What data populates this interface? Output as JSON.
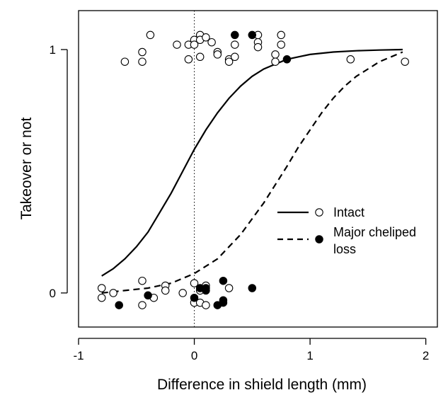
{
  "chart_data": {
    "type": "scatter",
    "title": "",
    "xlabel": "Difference in shield length (mm)",
    "ylabel": "Takeover or not",
    "xlim": [
      -1.0,
      2.1
    ],
    "ylim": [
      -0.14,
      1.16
    ],
    "x_ticks": [
      -1,
      0,
      1,
      2
    ],
    "x_tick_labels": [
      "-1",
      "0",
      "1",
      "2"
    ],
    "y_ticks": [
      0,
      1
    ],
    "y_tick_labels": [
      "0",
      "1"
    ],
    "reference_line_x": 0,
    "legend_position": "right-center",
    "series": [
      {
        "name": "Intact",
        "marker": "open-circle",
        "line_style": "solid",
        "curve": {
          "x": [
            -0.8,
            -0.7,
            -0.6,
            -0.5,
            -0.4,
            -0.3,
            -0.2,
            -0.1,
            0.0,
            0.1,
            0.2,
            0.3,
            0.4,
            0.5,
            0.6,
            0.7,
            0.8,
            0.9,
            1.0,
            1.2,
            1.4,
            1.6,
            1.8
          ],
          "y": [
            0.07,
            0.1,
            0.14,
            0.19,
            0.25,
            0.33,
            0.41,
            0.5,
            0.59,
            0.67,
            0.74,
            0.8,
            0.85,
            0.89,
            0.92,
            0.94,
            0.96,
            0.97,
            0.98,
            0.99,
            0.995,
            0.998,
            1.0
          ]
        },
        "points": [
          [
            -0.6,
            0.95
          ],
          [
            -0.45,
            0.99
          ],
          [
            -0.45,
            0.95
          ],
          [
            -0.38,
            1.06
          ],
          [
            -0.15,
            1.02
          ],
          [
            -0.05,
            1.02
          ],
          [
            -0.05,
            0.96
          ],
          [
            0.0,
            1.04
          ],
          [
            0.0,
            1.02
          ],
          [
            0.05,
            1.06
          ],
          [
            0.05,
            1.04
          ],
          [
            0.05,
            0.97
          ],
          [
            0.1,
            1.05
          ],
          [
            0.15,
            1.03
          ],
          [
            0.2,
            0.99
          ],
          [
            0.2,
            0.98
          ],
          [
            0.3,
            0.96
          ],
          [
            0.3,
            0.95
          ],
          [
            0.35,
            1.02
          ],
          [
            0.35,
            0.97
          ],
          [
            0.55,
            1.06
          ],
          [
            0.55,
            1.03
          ],
          [
            0.55,
            1.01
          ],
          [
            0.7,
            0.98
          ],
          [
            0.7,
            0.95
          ],
          [
            0.75,
            1.06
          ],
          [
            0.75,
            1.02
          ],
          [
            1.35,
            0.96
          ],
          [
            1.82,
            0.95
          ],
          [
            -0.8,
            0.02
          ],
          [
            -0.8,
            -0.02
          ],
          [
            -0.7,
            0.0
          ],
          [
            -0.45,
            0.05
          ],
          [
            -0.45,
            -0.05
          ],
          [
            -0.35,
            -0.02
          ],
          [
            -0.25,
            0.03
          ],
          [
            -0.25,
            0.01
          ],
          [
            -0.1,
            0.0
          ],
          [
            0.0,
            0.04
          ],
          [
            0.0,
            -0.04
          ],
          [
            0.05,
            0.01
          ],
          [
            0.05,
            -0.04
          ],
          [
            0.1,
            0.03
          ],
          [
            0.1,
            -0.05
          ],
          [
            0.3,
            0.02
          ]
        ]
      },
      {
        "name": "Major cheliped loss",
        "marker": "filled-circle",
        "line_style": "dashed",
        "curve": {
          "x": [
            -0.8,
            -0.6,
            -0.4,
            -0.2,
            0.0,
            0.2,
            0.4,
            0.6,
            0.8,
            0.9,
            1.0,
            1.1,
            1.2,
            1.3,
            1.4,
            1.5,
            1.6,
            1.7,
            1.8
          ],
          "y": [
            0.0,
            0.01,
            0.02,
            0.04,
            0.08,
            0.14,
            0.24,
            0.37,
            0.52,
            0.6,
            0.67,
            0.74,
            0.8,
            0.85,
            0.89,
            0.92,
            0.95,
            0.97,
            0.99
          ]
        },
        "points": [
          [
            0.35,
            1.06
          ],
          [
            0.5,
            1.06
          ],
          [
            0.8,
            0.96
          ],
          [
            -0.65,
            -0.05
          ],
          [
            -0.4,
            -0.01
          ],
          [
            0.0,
            -0.02
          ],
          [
            0.05,
            0.02
          ],
          [
            0.1,
            0.02
          ],
          [
            0.1,
            0.01
          ],
          [
            0.2,
            -0.05
          ],
          [
            0.25,
            0.05
          ],
          [
            0.25,
            -0.03
          ],
          [
            0.25,
            -0.04
          ],
          [
            0.5,
            0.02
          ]
        ]
      }
    ]
  }
}
